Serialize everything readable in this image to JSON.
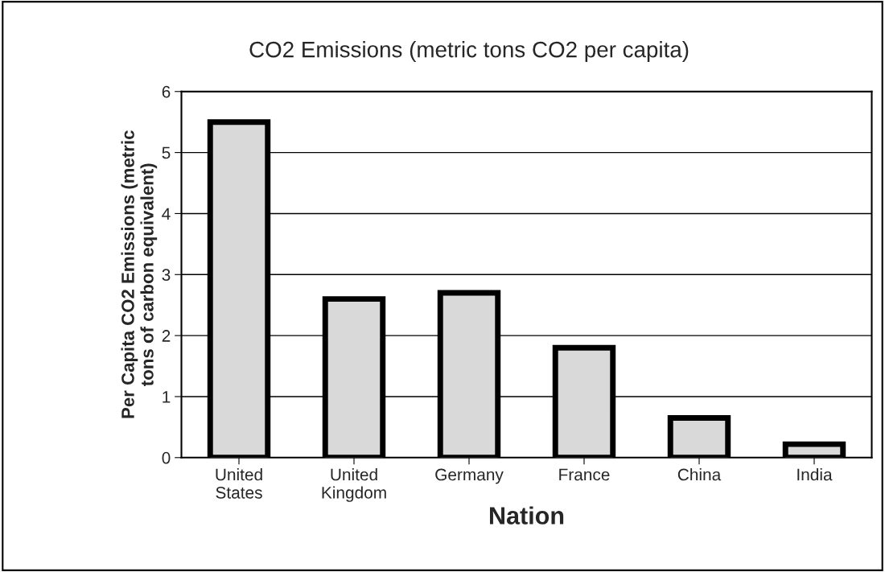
{
  "chart_data": {
    "type": "bar",
    "title": "CO2 Emissions (metric tons CO2 per capita)",
    "xlabel": "Nation",
    "ylabel": "Per Capita CO2 Emissions (metric\ntons of carbon equivalent)",
    "categories": [
      "United\nStates",
      "United\nKingdom",
      "Germany",
      "France",
      "China",
      "India"
    ],
    "values": [
      5.5,
      2.6,
      2.7,
      1.8,
      0.65,
      0.22
    ],
    "color": "#d9d9d9",
    "ylim": [
      0,
      6
    ],
    "yticks": [
      0,
      1,
      2,
      3,
      4,
      5,
      6
    ],
    "grid": "y",
    "legend": false
  }
}
